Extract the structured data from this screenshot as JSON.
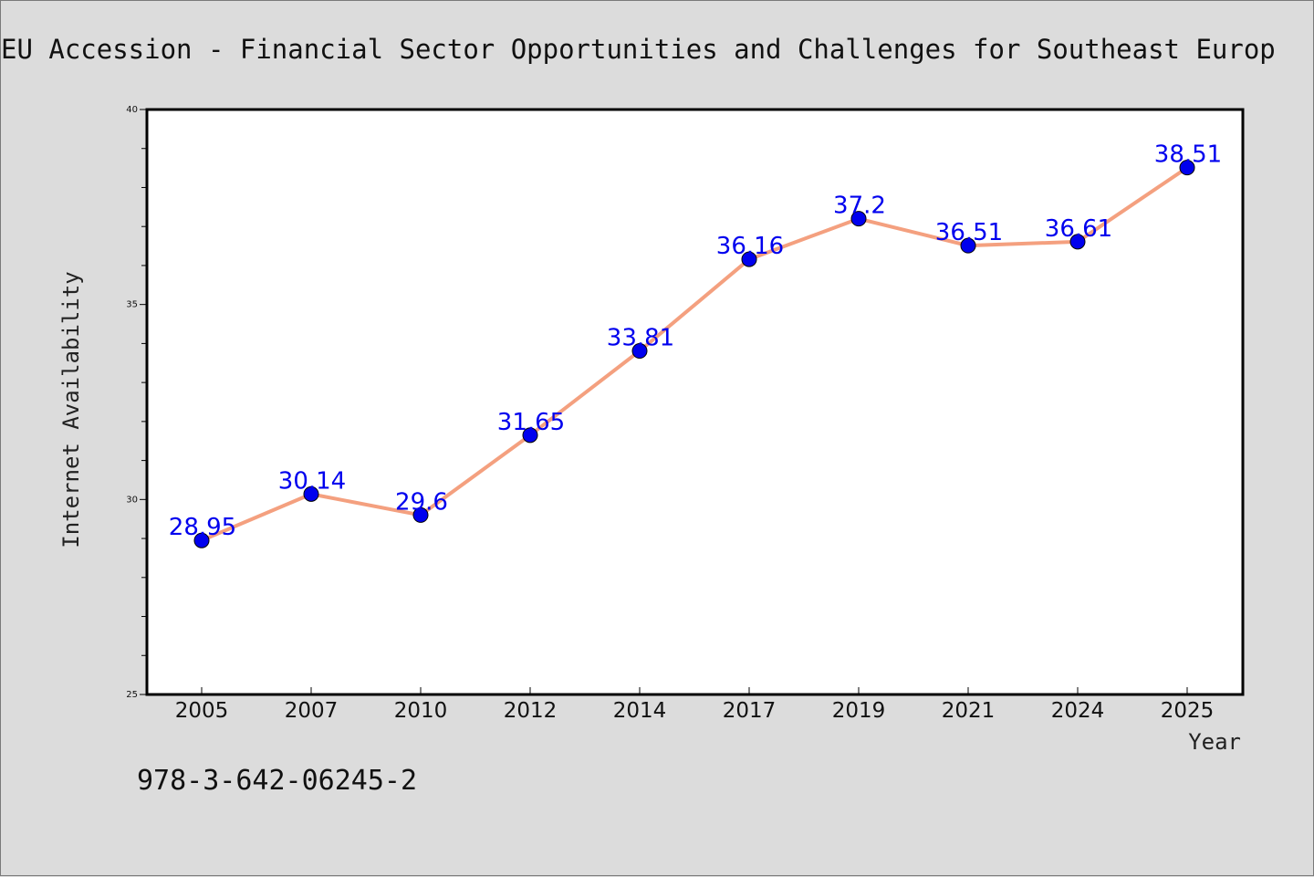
{
  "chart_data": {
    "type": "line",
    "title": "EU Accession - Financial Sector Opportunities and Challenges for Southeast Europ",
    "xlabel": "Year",
    "ylabel": "Internet Availability",
    "categories": [
      "2005",
      "2007",
      "2010",
      "2012",
      "2014",
      "2017",
      "2019",
      "2021",
      "2024",
      "2025"
    ],
    "series": [
      {
        "values": [
          28.95,
          30.14,
          29.6,
          31.65,
          33.81,
          36.16,
          37.2,
          36.51,
          36.61,
          38.51
        ],
        "data_labels": [
          "28.95",
          "30.14",
          "29.6",
          "31.65",
          "33.81",
          "36.16",
          "37.2",
          "36.51",
          "36.61",
          "38.51"
        ]
      }
    ],
    "ylim": [
      25,
      40
    ],
    "yticks": [
      "25",
      "30",
      "35",
      "40"
    ],
    "grid": false,
    "legend": "none",
    "colors": {
      "line": "#f4a07f",
      "marker": "#0000ee",
      "label": "#0000ee",
      "plot_bg": "#ffffff",
      "page_bg": "#dcdcdc"
    }
  },
  "footer": {
    "isbn": "978-3-642-06245-2"
  }
}
